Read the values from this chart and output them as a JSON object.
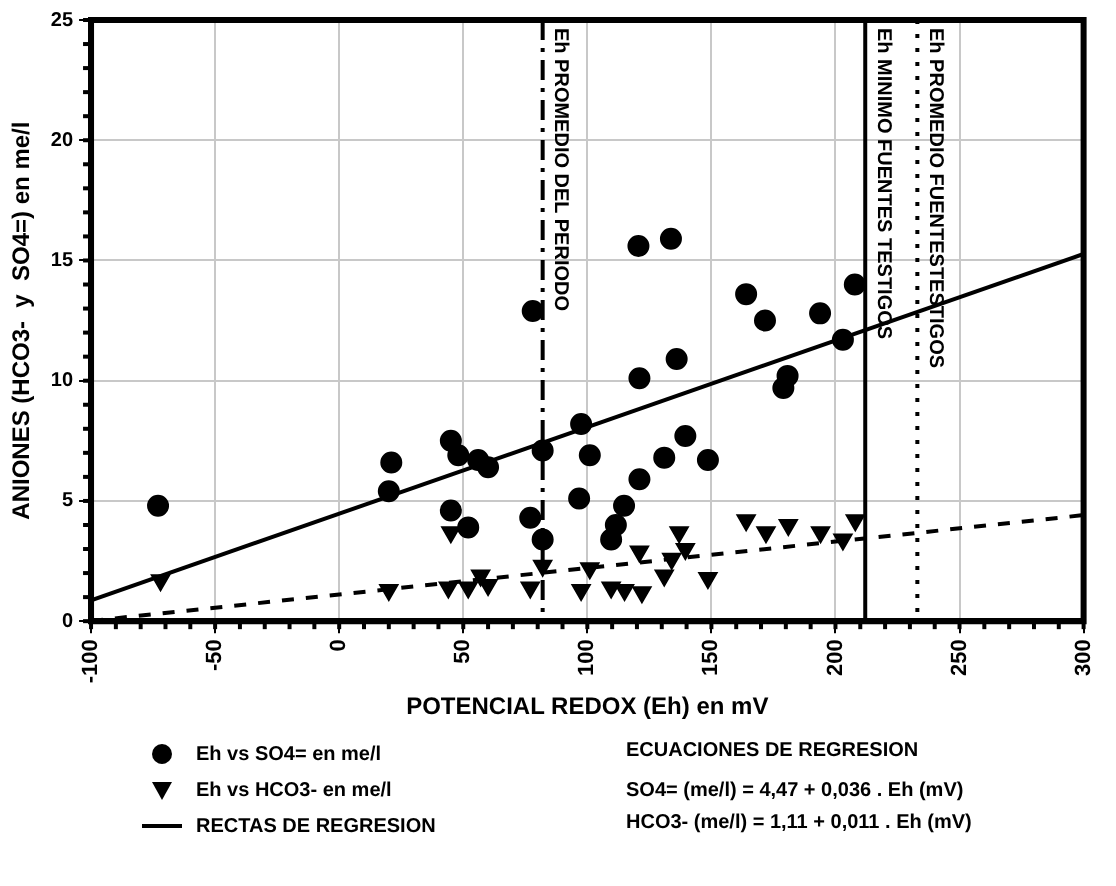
{
  "chart_data": {
    "type": "scatter",
    "xlabel": "POTENCIAL REDOX (Eh) en mV",
    "ylabel": "ANIONES (HCO3-  y  SO4=) en me/l",
    "xlim": [
      -100,
      300
    ],
    "xticks": [
      -100,
      -50,
      0,
      50,
      100,
      150,
      200,
      250,
      300
    ],
    "ylim": [
      0,
      25
    ],
    "yticks": [
      0,
      5,
      10,
      15,
      20,
      25
    ],
    "grid": true,
    "legend": "bottom left",
    "series": [
      {
        "name": "Eh vs SO4= en me/l",
        "color": "#000000",
        "marker": "circle",
        "x": [
          -73,
          20,
          21,
          45,
          48,
          45,
          52,
          56,
          60,
          78,
          77,
          82,
          82,
          120.6,
          133.7,
          164,
          171.6,
          193.8,
          207.8,
          203,
          136,
          121,
          180.7,
          179,
          97.5,
          101,
          139.5,
          131,
          148.6,
          121,
          96.7,
          114.8,
          111.5,
          109.6
        ],
        "values": [
          4.8,
          5.4,
          6.6,
          7.5,
          6.9,
          4.6,
          3.9,
          6.7,
          6.4,
          12.9,
          4.3,
          3.4,
          7.1,
          15.6,
          15.9,
          13.6,
          12.5,
          12.8,
          14.0,
          11.7,
          10.9,
          10.1,
          10.2,
          9.7,
          8.2,
          6.9,
          7.7,
          6.8,
          6.7,
          5.9,
          5.1,
          4.8,
          4.0,
          3.4
        ]
      },
      {
        "name": "Eh vs HCO3- en me/l",
        "color": "#000000",
        "marker": "triangle",
        "x": [
          -72,
          20,
          45,
          44,
          52,
          60,
          57,
          77,
          82,
          101,
          97.5,
          109.6,
          115,
          122,
          121,
          131,
          134,
          137,
          139.5,
          148.6,
          164,
          172,
          181,
          194,
          203,
          208
        ],
        "values": [
          1.7,
          1.3,
          3.7,
          1.4,
          1.4,
          1.5,
          1.9,
          1.4,
          2.3,
          2.2,
          1.3,
          1.4,
          1.3,
          1.2,
          2.9,
          1.9,
          2.6,
          3.7,
          3.0,
          1.8,
          4.2,
          3.7,
          4.0,
          3.7,
          3.4,
          4.2
        ]
      },
      {
        "name": "RECTAS DE REGRESION",
        "type": "line",
        "color": "#000000",
        "marker": "none",
        "line_style": "solid",
        "x": [
          -100,
          300
        ],
        "values": [
          0.87,
          15.27
        ]
      },
      {
        "type": "line",
        "color": "#000000",
        "marker": "none",
        "line_style": "dashed",
        "x": [
          -100,
          300
        ],
        "values": [
          0.01,
          4.41
        ]
      }
    ],
    "ref_lines": [
      {
        "axis": "x",
        "value": 82,
        "label": "Eh PROMEDIO DEL PERIODO",
        "line_style": "dashdot",
        "color": "#000000"
      },
      {
        "axis": "x",
        "value": 212,
        "label": "Eh MINIMO FUENTES TESTIGOS",
        "line_style": "solid",
        "color": "#000000"
      },
      {
        "axis": "x",
        "value": 233,
        "label": "Eh PROMEDIO FUENTESTESTIGOS",
        "line_style": "dotted",
        "color": "#000000"
      }
    ],
    "annotations": [
      "ECUACIONES DE REGRESION",
      "SO4=   (me/l) = 4,47 + 0,036 . Eh (mV)",
      "HCO3- (me/l) = 1,11 + 0,011 . Eh (mV)"
    ]
  }
}
